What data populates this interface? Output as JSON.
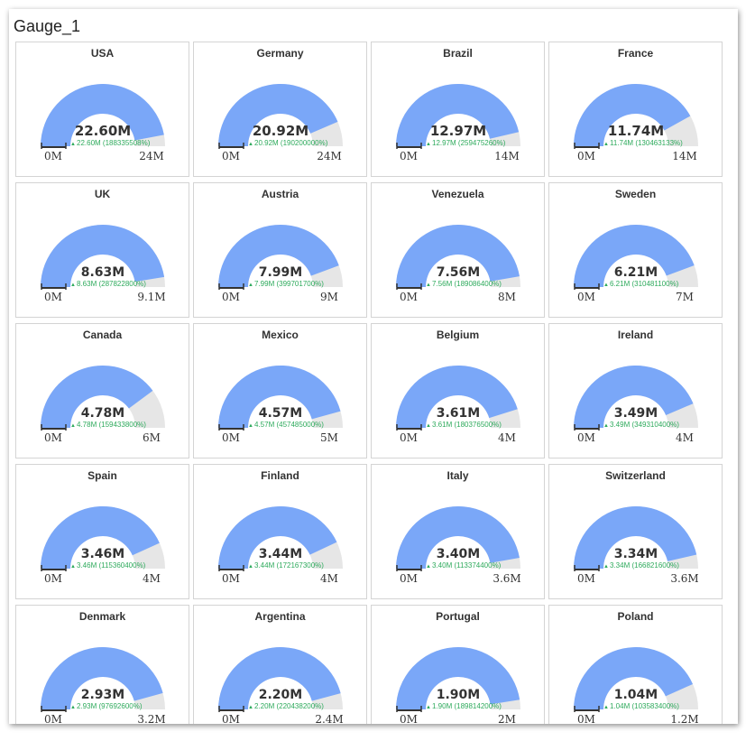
{
  "window": {
    "title": "Gauge_1"
  },
  "colors": {
    "fill": "#7aa7f8",
    "track": "#e6e6e6",
    "delta": "#2eaa5c",
    "axis": "#333333"
  },
  "chart_data": {
    "type": "gauge",
    "unit": "M",
    "items": [
      {
        "name": "USA",
        "value": 22.6,
        "value_label": "22.60M",
        "delta_label": "22.60M (188335508%)",
        "min_label": "0M",
        "max": 24,
        "max_label": "24M"
      },
      {
        "name": "Germany",
        "value": 20.92,
        "value_label": "20.92M",
        "delta_label": "20.92M (190200000%)",
        "min_label": "0M",
        "max": 24,
        "max_label": "24M"
      },
      {
        "name": "Brazil",
        "value": 12.97,
        "value_label": "12.97M",
        "delta_label": "12.97M (259475260%)",
        "min_label": "0M",
        "max": 14,
        "max_label": "14M"
      },
      {
        "name": "France",
        "value": 11.74,
        "value_label": "11.74M",
        "delta_label": "11.74M (130463133%)",
        "min_label": "0M",
        "max": 14,
        "max_label": "14M"
      },
      {
        "name": "UK",
        "value": 8.63,
        "value_label": "8.63M",
        "delta_label": "8.63M (287822800%)",
        "min_label": "0M",
        "max": 9.1,
        "max_label": "9.1M"
      },
      {
        "name": "Austria",
        "value": 7.99,
        "value_label": "7.99M",
        "delta_label": "7.99M (399701700%)",
        "min_label": "0M",
        "max": 9,
        "max_label": "9M"
      },
      {
        "name": "Venezuela",
        "value": 7.56,
        "value_label": "7.56M",
        "delta_label": "7.56M (189086400%)",
        "min_label": "0M",
        "max": 8,
        "max_label": "8M"
      },
      {
        "name": "Sweden",
        "value": 6.21,
        "value_label": "6.21M",
        "delta_label": "6.21M (310481100%)",
        "min_label": "0M",
        "max": 7,
        "max_label": "7M"
      },
      {
        "name": "Canada",
        "value": 4.78,
        "value_label": "4.78M",
        "delta_label": "4.78M (159433800%)",
        "min_label": "0M",
        "max": 6,
        "max_label": "6M"
      },
      {
        "name": "Mexico",
        "value": 4.57,
        "value_label": "4.57M",
        "delta_label": "4.57M (457485000%)",
        "min_label": "0M",
        "max": 5,
        "max_label": "5M"
      },
      {
        "name": "Belgium",
        "value": 3.61,
        "value_label": "3.61M",
        "delta_label": "3.61M (180376500%)",
        "min_label": "0M",
        "max": 4,
        "max_label": "4M"
      },
      {
        "name": "Ireland",
        "value": 3.49,
        "value_label": "3.49M",
        "delta_label": "3.49M (349310400%)",
        "min_label": "0M",
        "max": 4,
        "max_label": "4M"
      },
      {
        "name": "Spain",
        "value": 3.46,
        "value_label": "3.46M",
        "delta_label": "3.46M (115360400%)",
        "min_label": "0M",
        "max": 4,
        "max_label": "4M"
      },
      {
        "name": "Finland",
        "value": 3.44,
        "value_label": "3.44M",
        "delta_label": "3.44M (172167300%)",
        "min_label": "0M",
        "max": 4,
        "max_label": "4M"
      },
      {
        "name": "Italy",
        "value": 3.4,
        "value_label": "3.40M",
        "delta_label": "3.40M (113374400%)",
        "min_label": "0M",
        "max": 3.6,
        "max_label": "3.6M"
      },
      {
        "name": "Switzerland",
        "value": 3.34,
        "value_label": "3.34M",
        "delta_label": "3.34M (166821600%)",
        "min_label": "0M",
        "max": 3.6,
        "max_label": "3.6M"
      },
      {
        "name": "Denmark",
        "value": 2.93,
        "value_label": "2.93M",
        "delta_label": "2.93M (97692600%)",
        "min_label": "0M",
        "max": 3.2,
        "max_label": "3.2M"
      },
      {
        "name": "Argentina",
        "value": 2.2,
        "value_label": "2.20M",
        "delta_label": "2.20M (220438200%)",
        "min_label": "0M",
        "max": 2.4,
        "max_label": "2.4M"
      },
      {
        "name": "Portugal",
        "value": 1.9,
        "value_label": "1.90M",
        "delta_label": "1.90M (189814200%)",
        "min_label": "0M",
        "max": 2,
        "max_label": "2M"
      },
      {
        "name": "Poland",
        "value": 1.04,
        "value_label": "1.04M",
        "delta_label": "1.04M (103583400%)",
        "min_label": "0M",
        "max": 1.2,
        "max_label": "1.2M"
      }
    ]
  }
}
